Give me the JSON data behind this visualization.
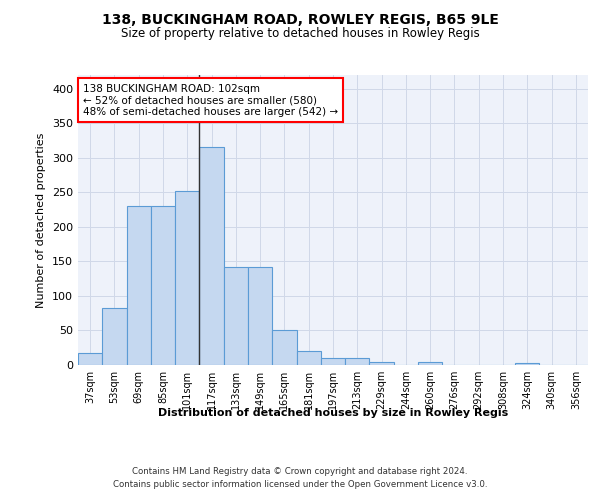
{
  "title1": "138, BUCKINGHAM ROAD, ROWLEY REGIS, B65 9LE",
  "title2": "Size of property relative to detached houses in Rowley Regis",
  "xlabel": "Distribution of detached houses by size in Rowley Regis",
  "ylabel": "Number of detached properties",
  "categories": [
    "37sqm",
    "53sqm",
    "69sqm",
    "85sqm",
    "101sqm",
    "117sqm",
    "133sqm",
    "149sqm",
    "165sqm",
    "181sqm",
    "197sqm",
    "213sqm",
    "229sqm",
    "244sqm",
    "260sqm",
    "276sqm",
    "292sqm",
    "308sqm",
    "324sqm",
    "340sqm",
    "356sqm"
  ],
  "values": [
    18,
    82,
    230,
    230,
    252,
    315,
    142,
    142,
    50,
    20,
    10,
    10,
    5,
    0,
    4,
    0,
    0,
    0,
    3,
    0,
    0
  ],
  "bar_color": "#c5d8f0",
  "bar_edge_color": "#5b9bd5",
  "grid_color": "#d0d8e8",
  "background_color": "#eef2fa",
  "annotation_text": "138 BUCKINGHAM ROAD: 102sqm\n← 52% of detached houses are smaller (580)\n48% of semi-detached houses are larger (542) →",
  "annotation_box_color": "white",
  "annotation_box_edge": "red",
  "property_line_x": 4.5,
  "ylim": [
    0,
    420
  ],
  "yticks": [
    0,
    50,
    100,
    150,
    200,
    250,
    300,
    350,
    400
  ],
  "footer1": "Contains HM Land Registry data © Crown copyright and database right 2024.",
  "footer2": "Contains public sector information licensed under the Open Government Licence v3.0."
}
